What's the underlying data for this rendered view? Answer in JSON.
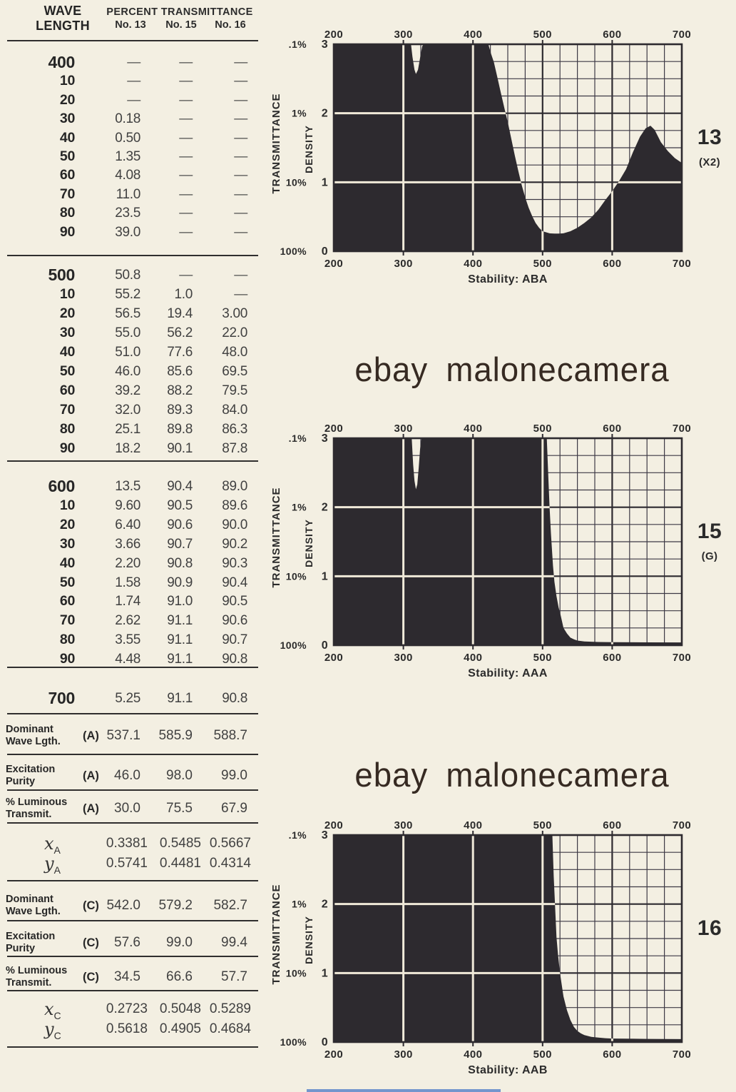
{
  "page": {
    "background": "#f3efe2",
    "watermark": "ebay malonecamera",
    "watermark_color": "#362a22"
  },
  "table": {
    "header": {
      "wave_line1": "WAVE",
      "wave_line2": "LENGTH",
      "group": "PERCENT TRANSMITTANCE",
      "cols": [
        "No. 13",
        "No. 15",
        "No. 16"
      ]
    },
    "blocks": [
      {
        "rows": [
          [
            "400",
            "—",
            "—",
            "—"
          ],
          [
            "10",
            "—",
            "—",
            "—"
          ],
          [
            "20",
            "—",
            "—",
            "—"
          ],
          [
            "30",
            "0.18",
            "—",
            "—"
          ],
          [
            "40",
            "0.50",
            "—",
            "—"
          ],
          [
            "50",
            "1.35",
            "—",
            "—"
          ],
          [
            "60",
            "4.08",
            "—",
            "—"
          ],
          [
            "70",
            "11.0",
            "—",
            "—"
          ],
          [
            "80",
            "23.5",
            "—",
            "—"
          ],
          [
            "90",
            "39.0",
            "—",
            "—"
          ]
        ]
      },
      {
        "rows": [
          [
            "500",
            "50.8",
            "—",
            "—"
          ],
          [
            "10",
            "55.2",
            "1.0",
            "—"
          ],
          [
            "20",
            "56.5",
            "19.4",
            "3.00"
          ],
          [
            "30",
            "55.0",
            "56.2",
            "22.0"
          ],
          [
            "40",
            "51.0",
            "77.6",
            "48.0"
          ],
          [
            "50",
            "46.0",
            "85.6",
            "69.5"
          ],
          [
            "60",
            "39.2",
            "88.2",
            "79.5"
          ],
          [
            "70",
            "32.0",
            "89.3",
            "84.0"
          ],
          [
            "80",
            "25.1",
            "89.8",
            "86.3"
          ],
          [
            "90",
            "18.2",
            "90.1",
            "87.8"
          ]
        ]
      },
      {
        "rows": [
          [
            "600",
            "13.5",
            "90.4",
            "89.0"
          ],
          [
            "10",
            "9.60",
            "90.5",
            "89.6"
          ],
          [
            "20",
            "6.40",
            "90.6",
            "90.0"
          ],
          [
            "30",
            "3.66",
            "90.7",
            "90.2"
          ],
          [
            "40",
            "2.20",
            "90.8",
            "90.3"
          ],
          [
            "50",
            "1.58",
            "90.9",
            "90.4"
          ],
          [
            "60",
            "1.74",
            "91.0",
            "90.5"
          ],
          [
            "70",
            "2.62",
            "91.1",
            "90.6"
          ],
          [
            "80",
            "3.55",
            "91.1",
            "90.7"
          ],
          [
            "90",
            "4.48",
            "91.1",
            "90.8"
          ]
        ]
      },
      {
        "rows": [
          [
            "700",
            "5.25",
            "91.1",
            "90.8"
          ]
        ]
      }
    ],
    "summary_a": [
      {
        "label1": "Dominant",
        "label2": "Wave Lgth.",
        "tag": "(A)",
        "values": [
          "537.1",
          "585.9",
          "588.7"
        ]
      },
      {
        "label1": "Excitation",
        "label2": "Purity",
        "tag": "(A)",
        "values": [
          "46.0",
          "98.0",
          "99.0"
        ]
      },
      {
        "label1": "% Luminous",
        "label2": "Transmit.",
        "tag": "(A)",
        "values": [
          "30.0",
          "75.5",
          "67.9"
        ]
      }
    ],
    "xy_a": [
      {
        "var": "x",
        "sub": "A",
        "values": [
          "0.3381",
          "0.5485",
          "0.5667"
        ]
      },
      {
        "var": "y",
        "sub": "A",
        "values": [
          "0.5741",
          "0.4481",
          "0.4314"
        ]
      }
    ],
    "summary_c": [
      {
        "label1": "Dominant",
        "label2": "Wave Lgth.",
        "tag": "(C)",
        "values": [
          "542.0",
          "579.2",
          "582.7"
        ]
      },
      {
        "label1": "Excitation",
        "label2": "Purity",
        "tag": "(C)",
        "values": [
          "57.6",
          "99.0",
          "99.4"
        ]
      },
      {
        "label1": "% Luminous",
        "label2": "Transmit.",
        "tag": "(C)",
        "values": [
          "34.5",
          "66.6",
          "57.7"
        ]
      }
    ],
    "xy_c": [
      {
        "var": "x",
        "sub": "C",
        "values": [
          "0.2723",
          "0.5048",
          "0.5289"
        ]
      },
      {
        "var": "y",
        "sub": "C",
        "values": [
          "0.5618",
          "0.4905",
          "0.4684"
        ]
      }
    ]
  },
  "chart_data": [
    {
      "type": "area",
      "id_label": "13",
      "id_note": "(X2)",
      "stability_label": "Stability: ABA",
      "ylabel_outer": "TRANSMITTANCE",
      "ylabel_inner": "DENSITY",
      "x_ticks": [
        200,
        300,
        400,
        500,
        600,
        700
      ],
      "x_range": [
        200,
        700
      ],
      "density_range": [
        0,
        3
      ],
      "transmittance_labels": [
        ".1%",
        "1%",
        "10%",
        "100%"
      ],
      "density_tick_labels": [
        "3",
        "2",
        "1",
        "0"
      ],
      "grid_minor_nm": 25,
      "grid_minor_density": 0.25,
      "ink": "#2d2a2f",
      "grid_color": "#3d3945",
      "cream_line": "#f0ead9",
      "density_curve": [
        [
          200,
          3.2
        ],
        [
          308,
          3.2
        ],
        [
          311,
          3.0
        ],
        [
          313,
          2.82
        ],
        [
          316,
          2.63
        ],
        [
          318,
          2.57
        ],
        [
          321,
          2.63
        ],
        [
          324,
          2.8
        ],
        [
          327,
          2.97
        ],
        [
          329,
          3.2
        ],
        [
          418,
          3.2
        ],
        [
          422,
          3.0
        ],
        [
          426,
          2.86
        ],
        [
          430,
          2.74
        ],
        [
          435,
          2.52
        ],
        [
          440,
          2.3
        ],
        [
          445,
          2.08
        ],
        [
          450,
          1.87
        ],
        [
          455,
          1.63
        ],
        [
          460,
          1.39
        ],
        [
          465,
          1.17
        ],
        [
          470,
          0.96
        ],
        [
          475,
          0.78
        ],
        [
          480,
          0.63
        ],
        [
          485,
          0.51
        ],
        [
          490,
          0.41
        ],
        [
          495,
          0.34
        ],
        [
          500,
          0.29
        ],
        [
          510,
          0.26
        ],
        [
          520,
          0.25
        ],
        [
          530,
          0.26
        ],
        [
          540,
          0.29
        ],
        [
          550,
          0.34
        ],
        [
          560,
          0.41
        ],
        [
          570,
          0.49
        ],
        [
          580,
          0.6
        ],
        [
          590,
          0.74
        ],
        [
          600,
          0.87
        ],
        [
          610,
          1.02
        ],
        [
          620,
          1.19
        ],
        [
          630,
          1.44
        ],
        [
          640,
          1.66
        ],
        [
          648,
          1.78
        ],
        [
          655,
          1.82
        ],
        [
          661,
          1.76
        ],
        [
          670,
          1.58
        ],
        [
          680,
          1.45
        ],
        [
          690,
          1.35
        ],
        [
          700,
          1.28
        ]
      ]
    },
    {
      "type": "area",
      "id_label": "15",
      "id_note": "(G)",
      "stability_label": "Stability: AAA",
      "ylabel_outer": "TRANSMITTANCE",
      "ylabel_inner": "DENSITY",
      "x_ticks": [
        200,
        300,
        400,
        500,
        600,
        700
      ],
      "x_range": [
        200,
        700
      ],
      "density_range": [
        0,
        3
      ],
      "transmittance_labels": [
        ".1%",
        "1%",
        "10%",
        "100%"
      ],
      "density_tick_labels": [
        "3",
        "2",
        "1",
        "0"
      ],
      "grid_minor_nm": 25,
      "grid_minor_density": 0.25,
      "ink": "#2d2a2f",
      "grid_color": "#3d3945",
      "cream_line": "#f0ead9",
      "density_curve": [
        [
          200,
          3.2
        ],
        [
          310,
          3.2
        ],
        [
          312,
          3.0
        ],
        [
          314,
          2.62
        ],
        [
          316,
          2.38
        ],
        [
          318,
          2.26
        ],
        [
          320,
          2.33
        ],
        [
          322,
          2.57
        ],
        [
          324,
          2.84
        ],
        [
          326,
          3.2
        ],
        [
          504,
          3.2
        ],
        [
          506,
          3.0
        ],
        [
          508,
          2.5
        ],
        [
          510,
          2.0
        ],
        [
          512,
          1.62
        ],
        [
          515,
          1.15
        ],
        [
          517,
          0.92
        ],
        [
          520,
          0.71
        ],
        [
          523,
          0.55
        ],
        [
          526,
          0.43
        ],
        [
          530,
          0.25
        ],
        [
          535,
          0.17
        ],
        [
          540,
          0.11
        ],
        [
          545,
          0.085
        ],
        [
          550,
          0.067
        ],
        [
          560,
          0.055
        ],
        [
          580,
          0.047
        ],
        [
          600,
          0.044
        ],
        [
          650,
          0.041
        ],
        [
          700,
          0.04
        ]
      ]
    },
    {
      "type": "area",
      "id_label": "16",
      "id_note": "",
      "stability_label": "Stability: AAB",
      "ylabel_outer": "TRANSMITTANCE",
      "ylabel_inner": "DENSITY",
      "x_ticks": [
        200,
        300,
        400,
        500,
        600,
        700
      ],
      "x_range": [
        200,
        700
      ],
      "density_range": [
        0,
        3
      ],
      "transmittance_labels": [
        ".1%",
        "1%",
        "10%",
        "100%"
      ],
      "density_tick_labels": [
        "3",
        "2",
        "1",
        "0"
      ],
      "grid_minor_nm": 25,
      "grid_minor_density": 0.25,
      "ink": "#2d2a2f",
      "grid_color": "#3d3945",
      "cream_line": "#f0ead9",
      "density_curve": [
        [
          200,
          3.2
        ],
        [
          512,
          3.2
        ],
        [
          514,
          3.0
        ],
        [
          516,
          2.4
        ],
        [
          518,
          1.95
        ],
        [
          520,
          1.52
        ],
        [
          522,
          1.28
        ],
        [
          525,
          1.0
        ],
        [
          527,
          0.86
        ],
        [
          530,
          0.66
        ],
        [
          535,
          0.46
        ],
        [
          540,
          0.32
        ],
        [
          545,
          0.22
        ],
        [
          550,
          0.16
        ],
        [
          555,
          0.125
        ],
        [
          560,
          0.1
        ],
        [
          570,
          0.076
        ],
        [
          580,
          0.064
        ],
        [
          590,
          0.056
        ],
        [
          600,
          0.051
        ],
        [
          650,
          0.046
        ],
        [
          700,
          0.042
        ]
      ]
    }
  ]
}
